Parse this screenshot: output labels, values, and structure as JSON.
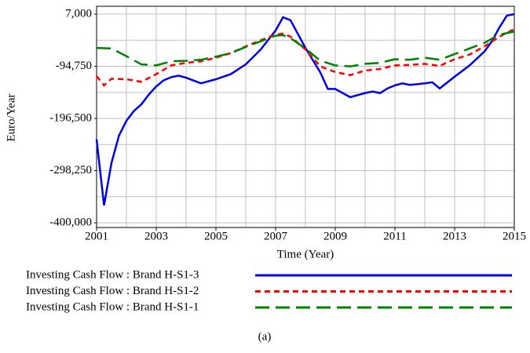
{
  "chart_data": {
    "type": "line",
    "xlabel": "Time (Year)",
    "ylabel": "Euro/Year",
    "caption": "(a)",
    "xlim": [
      2001,
      2015
    ],
    "xticks": [
      2001,
      2003,
      2005,
      2007,
      2009,
      2011,
      2013,
      2015
    ],
    "xgrid": [
      2001,
      2002,
      2003,
      2004,
      2005,
      2006,
      2007,
      2008,
      2009,
      2010,
      2011,
      2012,
      2013,
      2014,
      2015
    ],
    "ylim": [
      -400000,
      7000
    ],
    "yticks": [
      {
        "value": 7000,
        "label": "7,000"
      },
      {
        "value": -94750,
        "label": "-94,750"
      },
      {
        "value": -196500,
        "label": "-196,500"
      },
      {
        "value": -298250,
        "label": "-298,250"
      },
      {
        "value": -400000,
        "label": "-400,000"
      }
    ],
    "ygrid": [
      7000,
      -43875,
      -94750,
      -145625,
      -196500,
      -247375,
      -298250,
      -349125,
      -400000
    ],
    "series": [
      {
        "name": "Investing Cash Flow : Brand H-S1-3",
        "color": "#0000e6",
        "dash": "solid",
        "x": [
          2001,
          2001.25,
          2001.5,
          2001.75,
          2002,
          2002.25,
          2002.5,
          2002.75,
          2003,
          2003.25,
          2003.5,
          2003.75,
          2004,
          2004.5,
          2005,
          2005.5,
          2006,
          2006.5,
          2007,
          2007.25,
          2007.5,
          2008,
          2008.5,
          2008.75,
          2009,
          2009.5,
          2010,
          2010.25,
          2010.5,
          2010.75,
          2011,
          2011.25,
          2011.5,
          2012,
          2012.25,
          2012.5,
          2013,
          2013.5,
          2014,
          2014.25,
          2014.5,
          2014.75,
          2015
        ],
        "values": [
          -237500,
          -366000,
          -283000,
          -230000,
          -201000,
          -182000,
          -169000,
          -150000,
          -134000,
          -122000,
          -116000,
          -113000,
          -117000,
          -128000,
          -120000,
          -110000,
          -91000,
          -62000,
          -25000,
          1000,
          -5000,
          -59000,
          -107000,
          -139000,
          -139000,
          -155000,
          -147000,
          -144000,
          -147000,
          -138000,
          -132000,
          -128000,
          -131000,
          -128000,
          -126000,
          -138000,
          -115000,
          -93000,
          -66000,
          -46000,
          -19000,
          4000,
          7000
        ]
      },
      {
        "name": "Investing Cash Flow : Brand H-S1-2",
        "color": "#ff0000",
        "dash": "short",
        "x": [
          2001,
          2001.25,
          2001.5,
          2002,
          2002.5,
          2003,
          2003.5,
          2004,
          2004.5,
          2005,
          2005.5,
          2006,
          2006.5,
          2007,
          2007.25,
          2007.5,
          2008,
          2008.5,
          2009,
          2009.5,
          2010,
          2010.5,
          2011,
          2011.5,
          2012,
          2012.5,
          2013,
          2013.5,
          2014,
          2014.5,
          2015
        ],
        "values": [
          -114000,
          -132000,
          -119000,
          -120000,
          -125000,
          -110000,
          -93000,
          -88000,
          -85000,
          -78000,
          -69000,
          -56000,
          -44000,
          -33000,
          -31000,
          -37000,
          -62000,
          -95000,
          -106000,
          -112000,
          -103000,
          -100000,
          -93000,
          -92000,
          -90000,
          -94000,
          -81000,
          -72000,
          -56000,
          -37000,
          -22000
        ]
      },
      {
        "name": "Investing Cash Flow : Brand H-S1-1",
        "color": "#008000",
        "dash": "long",
        "x": [
          2001,
          2001.5,
          2002,
          2002.5,
          2003,
          2003.5,
          2004,
          2004.5,
          2005,
          2005.5,
          2006,
          2006.5,
          2007,
          2007.25,
          2007.5,
          2008,
          2008.5,
          2009,
          2009.5,
          2010,
          2010.5,
          2011,
          2011.5,
          2012,
          2012.5,
          2013,
          2013.5,
          2014,
          2014.5,
          2015
        ],
        "values": [
          -59000,
          -60000,
          -75000,
          -91000,
          -93000,
          -85000,
          -84000,
          -82000,
          -76000,
          -69000,
          -57000,
          -46000,
          -35000,
          -34000,
          -40000,
          -60000,
          -84000,
          -93000,
          -95000,
          -90000,
          -88000,
          -81000,
          -82000,
          -78000,
          -82000,
          -71000,
          -60000,
          -49000,
          -33000,
          -27000
        ]
      }
    ]
  }
}
